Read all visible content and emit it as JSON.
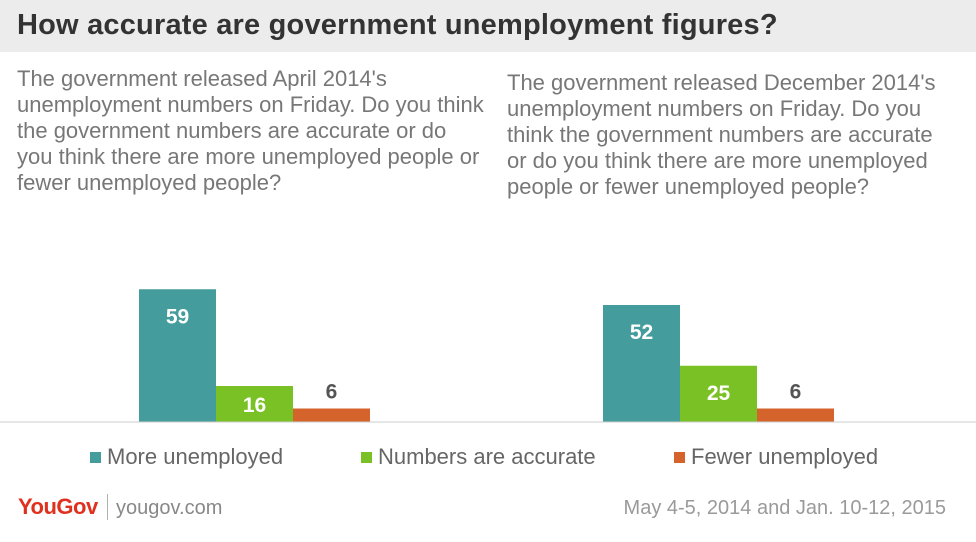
{
  "title": "How accurate are government unemployment figures?",
  "questions": [
    "The government released April 2014's unemployment numbers on Friday. Do you think the government numbers are accurate or do you think there are more unemployed people or fewer unemployed people?",
    "The government released December 2014's unemployment numbers on Friday. Do you think the government numbers are accurate or do you think there are more unemployed people or fewer unemployed people?"
  ],
  "chart_data": [
    {
      "type": "bar",
      "categories": [
        "More unemployed",
        "Numbers are accurate",
        "Fewer unemployed"
      ],
      "values": [
        59,
        16,
        6
      ],
      "colors": [
        "#449c9c",
        "#79c124",
        "#d5632c"
      ]
    },
    {
      "type": "bar",
      "categories": [
        "More unemployed",
        "Numbers are accurate",
        "Fewer unemployed"
      ],
      "values": [
        52,
        25,
        6
      ],
      "colors": [
        "#449c9c",
        "#79c124",
        "#d5632c"
      ]
    }
  ],
  "legend": [
    {
      "label": "More unemployed",
      "color": "#449c9c"
    },
    {
      "label": "Numbers are accurate",
      "color": "#79c124"
    },
    {
      "label": "Fewer unemployed",
      "color": "#d5632c"
    }
  ],
  "footer": {
    "logo": "YouGov",
    "site": "yougov.com",
    "date": "May 4-5, 2014 and Jan. 10-12, 2015"
  }
}
